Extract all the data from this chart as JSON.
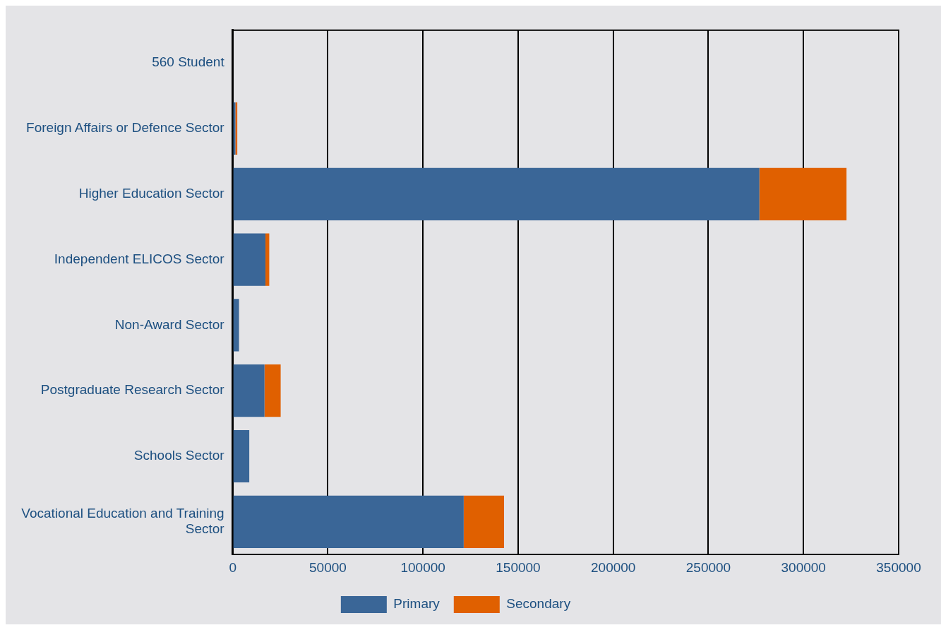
{
  "chart_data": {
    "type": "bar",
    "orientation": "horizontal",
    "stacked": true,
    "categories": [
      "560 Student",
      "Foreign Affairs or Defence Sector",
      "Higher Education Sector",
      "Independent ELICOS Sector",
      "Non-Award Sector",
      "Postgraduate Research Sector",
      "Schools Sector",
      "Vocational Education and Training Sector"
    ],
    "series": [
      {
        "name": "Primary",
        "color": "#3a6697",
        "values": [
          0,
          1400,
          276800,
          17200,
          3300,
          16700,
          8700,
          121400
        ]
      },
      {
        "name": "Secondary",
        "color": "#e06000",
        "values": [
          0,
          1000,
          45800,
          2000,
          0,
          8500,
          0,
          21200
        ]
      }
    ],
    "xlim": [
      0,
      350000
    ],
    "xticks": [
      0,
      50000,
      100000,
      150000,
      200000,
      250000,
      300000,
      350000
    ],
    "grid": "x",
    "legend": "bottom"
  }
}
